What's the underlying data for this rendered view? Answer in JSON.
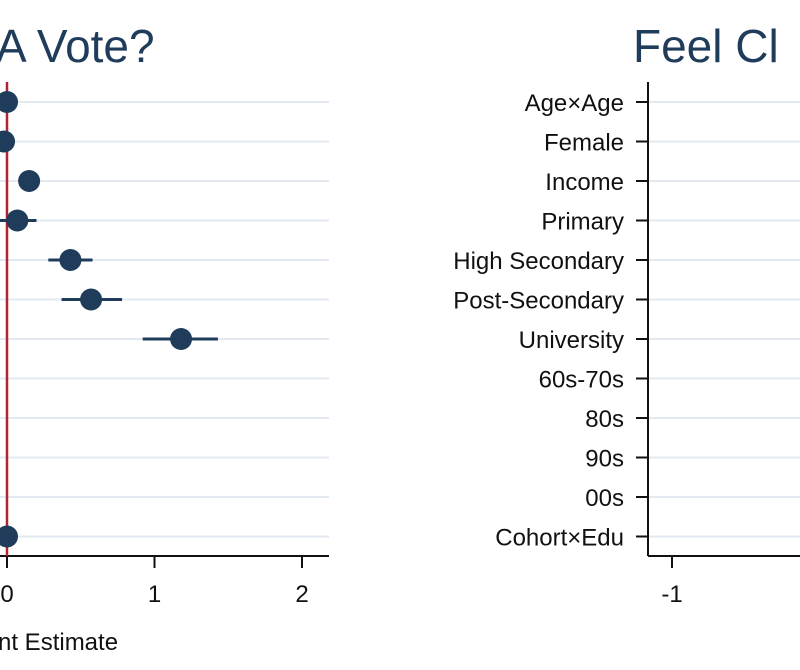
{
  "chart_data": [
    {
      "type": "scatter",
      "title": "A Vote?",
      "xlabel": "nt Estimate",
      "ylabel": "",
      "xlim": [
        -0.05,
        2.15
      ],
      "x_ticks": [
        0,
        1,
        2
      ],
      "x_tick_labels": [
        "0",
        "1",
        "2"
      ],
      "reference_line": 0,
      "grid": true,
      "categories": [
        "Age×Age",
        "Female",
        "Income",
        "Primary",
        "High Secondary",
        "Post-Secondary",
        "University",
        "60s-70s",
        "80s",
        "90s",
        "00s",
        "Cohort×Edu"
      ],
      "series": [
        {
          "estimates": [
            0.0,
            -0.02,
            0.15,
            0.07,
            0.43,
            0.57,
            1.18,
            null,
            null,
            null,
            null,
            0.0
          ],
          "ci_low": [
            null,
            null,
            null,
            -0.08,
            0.28,
            0.37,
            0.92,
            null,
            null,
            null,
            null,
            null
          ],
          "ci_high": [
            null,
            null,
            null,
            0.2,
            0.58,
            0.78,
            1.43,
            null,
            null,
            null,
            null,
            null
          ]
        }
      ],
      "colors": {
        "marker": "#1f3c5a",
        "reference_line": "#b22234",
        "grid": "#e3e9f0"
      }
    },
    {
      "type": "scatter",
      "title": "Feel Cl",
      "xlabel": "",
      "ylabel": "",
      "xlim": [
        -1.15,
        0.35
      ],
      "x_ticks": [
        -1
      ],
      "x_tick_labels": [
        "-1"
      ],
      "grid": true,
      "categories": [
        "Age×Age",
        "Female",
        "Income",
        "Primary",
        "High Secondary",
        "Post-Secondary",
        "University",
        "60s-70s",
        "80s",
        "90s",
        "00s",
        "Cohort×Edu"
      ],
      "series": [],
      "colors": {
        "grid": "#e3e9f0"
      }
    }
  ]
}
